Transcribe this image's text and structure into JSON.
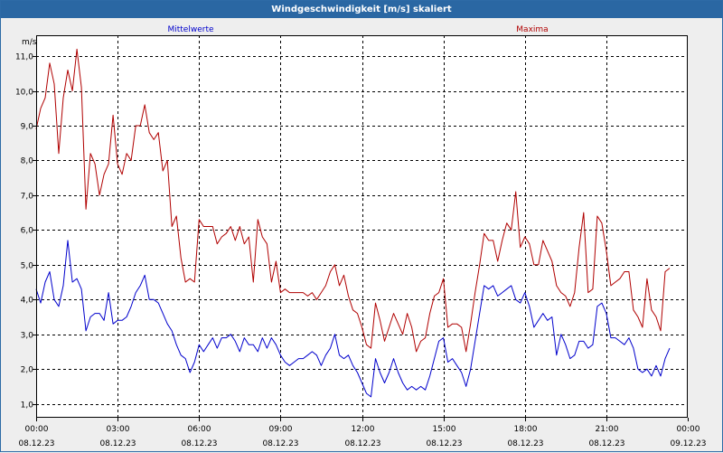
{
  "window": {
    "title": "Windgeschwindigkeit [m/s] skaliert"
  },
  "chart_data": {
    "type": "line",
    "title": "Windgeschwindigkeit [m/s] skaliert",
    "ylabel": "m/s",
    "xlabel": "",
    "ylim": [
      0.6,
      11.6
    ],
    "xlim_hours": [
      0,
      24
    ],
    "grid": true,
    "grid_style": "dashed",
    "y_ticks": [
      "1,0",
      "2,0",
      "3,0",
      "4,0",
      "5,0",
      "6,0",
      "7,0",
      "8,0",
      "9,0",
      "10,0",
      "11,0"
    ],
    "x_ticks": [
      {
        "time": "00:00",
        "date": "08.12.23"
      },
      {
        "time": "03:00",
        "date": "08.12.23"
      },
      {
        "time": "06:00",
        "date": "08.12.23"
      },
      {
        "time": "09:00",
        "date": "08.12.23"
      },
      {
        "time": "12:00",
        "date": "08.12.23"
      },
      {
        "time": "15:00",
        "date": "08.12.23"
      },
      {
        "time": "18:00",
        "date": "08.12.23"
      },
      {
        "time": "21:00",
        "date": "08.12.23"
      },
      {
        "time": "00:00",
        "date": "09.12.23"
      }
    ],
    "sample_interval_minutes": 10,
    "series": [
      {
        "name": "Mittelwerte",
        "color": "#0000cc",
        "values": [
          4.3,
          3.9,
          4.5,
          4.8,
          4.0,
          3.8,
          4.4,
          5.7,
          4.5,
          4.6,
          4.3,
          3.1,
          3.5,
          3.6,
          3.6,
          3.4,
          4.2,
          3.3,
          3.4,
          3.4,
          3.5,
          3.8,
          4.2,
          4.4,
          4.7,
          4.0,
          4.0,
          3.9,
          3.6,
          3.3,
          3.1,
          2.7,
          2.4,
          2.3,
          1.9,
          2.2,
          2.7,
          2.5,
          2.7,
          2.9,
          2.6,
          2.9,
          2.9,
          3.0,
          2.8,
          2.5,
          2.9,
          2.7,
          2.7,
          2.5,
          2.9,
          2.6,
          2.9,
          2.7,
          2.4,
          2.2,
          2.1,
          2.2,
          2.3,
          2.3,
          2.4,
          2.5,
          2.4,
          2.1,
          2.4,
          2.6,
          3.0,
          2.4,
          2.3,
          2.4,
          2.1,
          1.9,
          1.6,
          1.3,
          1.2,
          2.3,
          1.9,
          1.6,
          1.9,
          2.3,
          1.9,
          1.6,
          1.4,
          1.5,
          1.4,
          1.5,
          1.4,
          1.8,
          2.3,
          2.8,
          2.9,
          2.2,
          2.3,
          2.1,
          1.9,
          1.5,
          2.0,
          2.8,
          3.6,
          4.4,
          4.3,
          4.4,
          4.1,
          4.2,
          4.3,
          4.4,
          4.0,
          3.9,
          4.2,
          3.8,
          3.2,
          3.4,
          3.6,
          3.4,
          3.5,
          2.4,
          3.0,
          2.7,
          2.3,
          2.4,
          2.8,
          2.8,
          2.6,
          2.7,
          3.8,
          3.9,
          3.6,
          2.9,
          2.9,
          2.8,
          2.7,
          2.9,
          2.6,
          2.0,
          1.9,
          2.0,
          1.8,
          2.1,
          1.8,
          2.3,
          2.6
        ]
      },
      {
        "name": "Maxima",
        "color": "#b00000",
        "values": [
          8.9,
          9.5,
          9.8,
          10.8,
          10.2,
          8.2,
          9.8,
          10.6,
          10.0,
          11.2,
          10.1,
          6.6,
          8.2,
          7.9,
          7.0,
          7.6,
          7.9,
          9.3,
          7.9,
          7.6,
          8.2,
          8.0,
          9.0,
          9.0,
          9.6,
          8.8,
          8.6,
          8.8,
          7.7,
          8.0,
          6.1,
          6.4,
          5.2,
          4.5,
          4.6,
          4.5,
          6.3,
          6.1,
          6.1,
          6.1,
          5.6,
          5.8,
          5.9,
          6.1,
          5.7,
          6.1,
          5.6,
          5.8,
          4.5,
          6.3,
          5.8,
          5.6,
          4.5,
          5.1,
          4.2,
          4.3,
          4.2,
          4.2,
          4.2,
          4.2,
          4.1,
          4.2,
          4.0,
          4.2,
          4.4,
          4.8,
          5.0,
          4.4,
          4.7,
          4.1,
          3.7,
          3.6,
          3.2,
          2.7,
          2.6,
          3.9,
          3.4,
          2.8,
          3.2,
          3.6,
          3.3,
          3.0,
          3.6,
          3.2,
          2.5,
          2.8,
          2.9,
          3.6,
          4.1,
          4.2,
          4.6,
          3.2,
          3.3,
          3.3,
          3.2,
          2.5,
          3.3,
          4.2,
          5.0,
          5.9,
          5.7,
          5.7,
          5.1,
          5.7,
          6.2,
          6.0,
          7.1,
          5.5,
          5.8,
          5.6,
          5.0,
          5.0,
          5.7,
          5.4,
          5.1,
          4.4,
          4.2,
          4.1,
          3.8,
          4.2,
          5.5,
          6.5,
          4.2,
          4.3,
          6.4,
          6.2,
          5.4,
          4.4,
          4.5,
          4.6,
          4.8,
          4.8,
          3.7,
          3.5,
          3.2,
          4.6,
          3.7,
          3.5,
          3.1,
          4.8,
          4.9
        ]
      }
    ]
  }
}
